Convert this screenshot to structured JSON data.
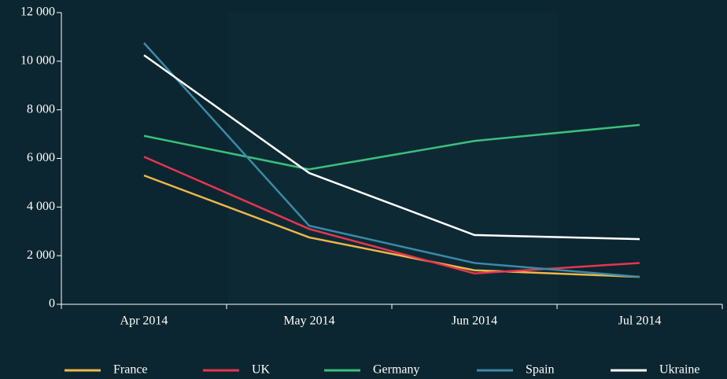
{
  "chart_data": {
    "type": "line",
    "categories": [
      "Apr 2014",
      "May 2014",
      "Jun 2014",
      "Jul 2014"
    ],
    "series": [
      {
        "name": "France",
        "color": "#f0b64a",
        "values": [
          5300,
          2750,
          1400,
          1130
        ]
      },
      {
        "name": "UK",
        "color": "#e8354f",
        "values": [
          6070,
          3100,
          1270,
          1700
        ]
      },
      {
        "name": "Germany",
        "color": "#3cbf7b",
        "values": [
          6930,
          5550,
          6720,
          7380
        ]
      },
      {
        "name": "Spain",
        "color": "#3b8aa8",
        "values": [
          10750,
          3230,
          1700,
          1130
        ]
      },
      {
        "name": "Ukraine",
        "color": "#ffffff",
        "values": [
          10250,
          5400,
          2850,
          2680
        ]
      }
    ],
    "ylim": [
      0,
      12000
    ],
    "yticks": [
      0,
      {
        "value": 2000,
        "label": "2 000"
      },
      {
        "value": 4000,
        "label": "4 000"
      },
      {
        "value": 6000,
        "label": "6 000"
      },
      {
        "value": 8000,
        "label": "8 000"
      },
      {
        "value": 10000,
        "label": "10 000"
      },
      {
        "value": 12000,
        "label": "12 000"
      }
    ],
    "legend": "bottom"
  }
}
